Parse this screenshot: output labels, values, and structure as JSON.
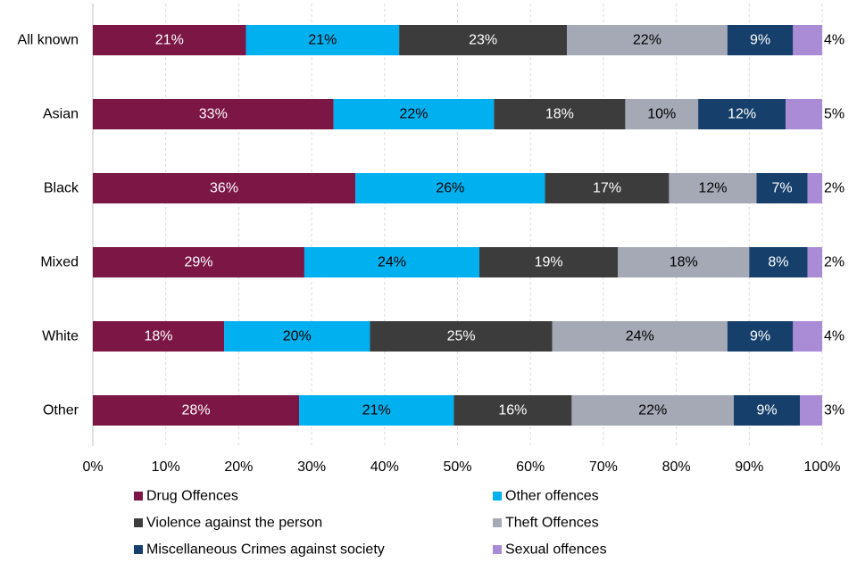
{
  "chart_data": {
    "type": "bar",
    "orientation": "horizontal",
    "stacked": true,
    "title": "",
    "xlabel": "",
    "ylabel": "",
    "xlim": [
      0,
      100
    ],
    "x_ticks": [
      "0%",
      "10%",
      "20%",
      "30%",
      "40%",
      "50%",
      "60%",
      "70%",
      "80%",
      "90%",
      "100%"
    ],
    "grid": true,
    "legend_position": "bottom",
    "categories": [
      "All known",
      "Asian",
      "Black",
      "Mixed",
      "White",
      "Other"
    ],
    "series": [
      {
        "name": "Drug Offences",
        "color": "#7b1645",
        "label_color": "#ffffff",
        "values": [
          21,
          33,
          36,
          29,
          18,
          28
        ],
        "labels": [
          "21%",
          "33%",
          "36%",
          "29%",
          "18%",
          "28%"
        ]
      },
      {
        "name": "Other offences",
        "color": "#00b0ef",
        "label_color": "#000000",
        "values": [
          21,
          22,
          26,
          24,
          20,
          21
        ],
        "labels": [
          "21%",
          "22%",
          "26%",
          "24%",
          "20%",
          "21%"
        ]
      },
      {
        "name": "Violence against the person",
        "color": "#3c3c3c",
        "label_color": "#ffffff",
        "values": [
          23,
          18,
          17,
          19,
          25,
          16
        ],
        "labels": [
          "23%",
          "18%",
          "17%",
          "19%",
          "25%",
          "16%"
        ]
      },
      {
        "name": "Theft Offences",
        "color": "#a4a9b5",
        "label_color": "#000000",
        "values": [
          22,
          10,
          12,
          18,
          24,
          22
        ],
        "labels": [
          "22%",
          "10%",
          "12%",
          "18%",
          "24%",
          "22%"
        ]
      },
      {
        "name": "Miscellaneous Crimes against society",
        "color": "#16406b",
        "label_color": "#ffffff",
        "values": [
          9,
          12,
          7,
          8,
          9,
          9
        ],
        "labels": [
          "9%",
          "12%",
          "7%",
          "8%",
          "9%",
          "9%"
        ]
      },
      {
        "name": "Sexual offences",
        "color": "#a98bd6",
        "label_color": "#000000",
        "values": [
          4,
          5,
          2,
          2,
          4,
          3
        ],
        "labels": [
          "4%",
          "5%",
          "2%",
          "2%",
          "4%",
          "3%"
        ]
      }
    ]
  }
}
